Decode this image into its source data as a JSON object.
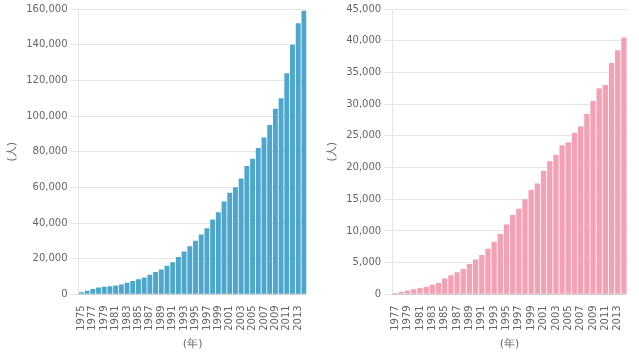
{
  "chart_data": [
    {
      "type": "bar",
      "categories": [
        "1975",
        null,
        "1977",
        null,
        "1979",
        null,
        "1981",
        null,
        "1983",
        null,
        "1985",
        null,
        "1987",
        null,
        "1989",
        null,
        "1991",
        null,
        "1993",
        null,
        "1995",
        null,
        "1997",
        null,
        "1999",
        null,
        "2001",
        null,
        "2003",
        null,
        "2005",
        null,
        "2007",
        null,
        "2009",
        null,
        "2011",
        null,
        "2013",
        null
      ],
      "values": [
        1200,
        2000,
        3000,
        3800,
        4200,
        4500,
        5000,
        5500,
        6500,
        7500,
        8500,
        9500,
        11000,
        12500,
        14000,
        16000,
        18000,
        21000,
        24000,
        27000,
        30000,
        33500,
        37000,
        42000,
        46000,
        52000,
        57000,
        60000,
        65000,
        72000,
        76000,
        82000,
        88000,
        95000,
        104000,
        110000,
        124000,
        140000,
        152000,
        159000
      ],
      "color": "#4da6cc",
      "ylabel": "(人)",
      "xlabel": "(年)",
      "ylim": [
        0,
        160000
      ],
      "yticks": [
        0,
        {
          "value": 20000,
          "label": "20,000"
        },
        {
          "value": 40000,
          "label": "40,000"
        },
        {
          "value": 60000,
          "label": "60,000"
        },
        {
          "value": 80000,
          "label": "80,000"
        },
        {
          "value": 100000,
          "label": "100,000"
        },
        {
          "value": 120000,
          "label": "120,000"
        },
        {
          "value": 140000,
          "label": "140,000"
        },
        {
          "value": 160000,
          "label": "160,000"
        }
      ],
      "grid": true
    },
    {
      "type": "bar",
      "categories": [
        "1977",
        null,
        "1979",
        null,
        "1981",
        null,
        "1983",
        null,
        "1985",
        null,
        "1987",
        null,
        "1989",
        null,
        "1991",
        null,
        "1993",
        null,
        "1995",
        null,
        "1997",
        null,
        "1999",
        null,
        "2001",
        null,
        "2003",
        null,
        "2005",
        null,
        "2007",
        null,
        "2009",
        null,
        "2011",
        null,
        "2013",
        null
      ],
      "values": [
        200,
        400,
        600,
        800,
        1000,
        1200,
        1500,
        1800,
        2500,
        3000,
        3500,
        4000,
        4800,
        5500,
        6200,
        7200,
        8300,
        9500,
        11000,
        12500,
        13500,
        15000,
        16500,
        17500,
        19500,
        21000,
        22000,
        23500,
        24000,
        25500,
        26500,
        28500,
        30500,
        32500,
        33000,
        36500,
        38500,
        40500
      ],
      "color": "#f4a0b5",
      "ylabel": "(人)",
      "xlabel": "(年)",
      "ylim": [
        0,
        45000
      ],
      "yticks": [
        0,
        {
          "value": 5000,
          "label": "5,000"
        },
        {
          "value": 10000,
          "label": "10,000"
        },
        {
          "value": 15000,
          "label": "15,000"
        },
        {
          "value": 20000,
          "label": "20,000"
        },
        {
          "value": 25000,
          "label": "25,000"
        },
        {
          "value": 30000,
          "label": "30,000"
        },
        {
          "value": 35000,
          "label": "35,000"
        },
        {
          "value": 40000,
          "label": "40,000"
        },
        {
          "value": 45000,
          "label": "45,000"
        }
      ],
      "grid": true
    }
  ]
}
